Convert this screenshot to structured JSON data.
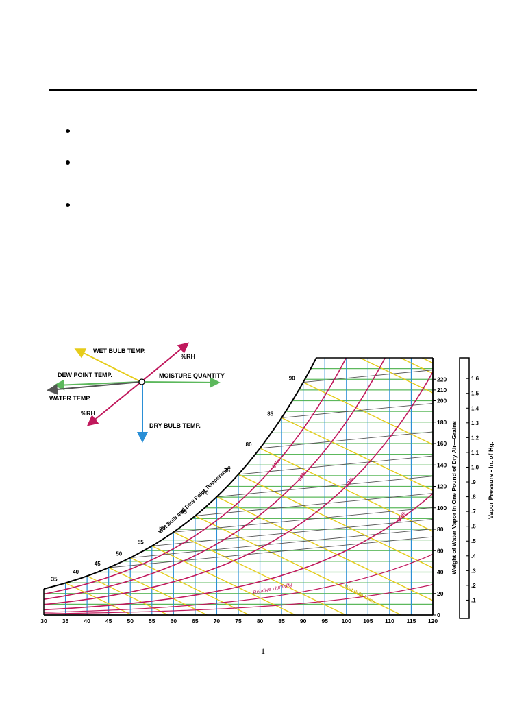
{
  "document": {
    "bullets": [
      "",
      "",
      ""
    ],
    "page_number": "1"
  },
  "legend": {
    "wet_bulb": "WET BULB TEMP.",
    "rh_top": "%RH",
    "dew_point": "DEW POINT TEMP.",
    "moisture": "MOISTURE QUANTITY",
    "water_temp": "WATER TEMP.",
    "rh_bottom": "%RH",
    "dry_bulb": "DRY BULB TEMP."
  },
  "chart_data": {
    "type": "psychrometric",
    "x_ticks": [
      "30",
      "35",
      "40",
      "45",
      "50",
      "55",
      "60",
      "65",
      "70",
      "75",
      "80",
      "85",
      "90",
      "95",
      "100",
      "105",
      "110",
      "115",
      "120"
    ],
    "xlim": [
      30,
      120
    ],
    "grain_ticks": [
      "0",
      "20",
      "40",
      "60",
      "80",
      "100",
      "120",
      "140",
      "160",
      "180",
      "200",
      "210",
      "220"
    ],
    "grain_values": [
      0,
      20,
      40,
      60,
      80,
      100,
      120,
      140,
      160,
      180,
      200,
      210,
      220
    ],
    "grain_axis_label": "Weight of Water Vapor in One Pound of Dry Air—Grains",
    "vapor_ticks": [
      ".1",
      ".2",
      ".3",
      ".4",
      ".5",
      ".6",
      ".7",
      ".8",
      ".9",
      "1.0",
      "1.1",
      "1.2",
      "1.3",
      "1.4",
      "1.5",
      "1.6"
    ],
    "vapor_axis_label": "Vapor Pressure - In. of Hg.",
    "saturation_labels": [
      "35",
      "40",
      "45",
      "50",
      "55",
      "60",
      "65",
      "70",
      "75",
      "80",
      "85",
      "90"
    ],
    "saturation_curve_label": "Wet Bulb and Dew Point Temperature",
    "rh_labels": [
      "80%",
      "60%",
      "40%",
      "20%"
    ],
    "rh_curve_label": "Relative Humidity",
    "wet_bulb_lines_label": "Wet Bulb Lines",
    "colors": {
      "dry_bulb": "#2a8fd6",
      "moisture": "#5cb85c",
      "wet_bulb": "#e6cc1a",
      "rh": "#c0185c",
      "vapor": "#555555",
      "saturation": "#000000"
    }
  }
}
